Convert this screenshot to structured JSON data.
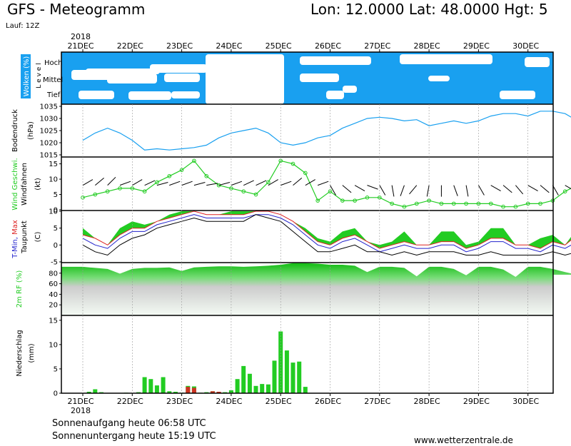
{
  "header": {
    "title": "GFS - Meteogramm",
    "location": "Lon: 12.0000  Lat: 48.0000  Hgt: 5",
    "run": "Lauf: 12Z"
  },
  "footer": {
    "sunrise": "Sonnenaufgang heute 06:58 UTC",
    "sunset": "Sonnenuntergang heute 15:19 UTC",
    "website": "www.wetterzentrale.de"
  },
  "chart_data": {
    "type": "meteogram",
    "year": "2018",
    "days": [
      "21DEC",
      "22DEC",
      "23DEC",
      "24DEC",
      "25DEC",
      "26DEC",
      "27DEC",
      "28DEC",
      "29DEC",
      "30DEC"
    ],
    "colors": {
      "cloud": "#19a0f0",
      "green": "#22cc22",
      "pressure": "#19a0f0",
      "tmax": "#dd2222",
      "tmin": "#2222cc",
      "red_precip": "#cc3322"
    },
    "panels": [
      {
        "key": "clouds",
        "ylabel": "Wolken (%)",
        "sublabel": "L e v e l",
        "levels": [
          "Hoch",
          "Mittel",
          "Tief"
        ]
      },
      {
        "key": "pressure",
        "ylabel": "Bodendruck",
        "unit": "(hPa)",
        "ylim": [
          1015,
          1035
        ],
        "ticks": [
          1015,
          1020,
          1025,
          1030,
          1035
        ],
        "x": [
          0,
          6,
          12,
          18,
          24,
          30,
          36,
          42,
          48,
          54,
          60,
          66,
          72,
          78,
          84,
          90,
          96,
          102,
          108,
          114,
          120,
          126,
          132,
          138,
          144,
          150,
          156,
          162,
          168,
          174,
          180,
          186,
          192,
          198,
          204,
          210,
          216,
          222,
          228,
          234,
          240
        ],
        "values": [
          1021,
          1024,
          1026,
          1024,
          1021,
          1017,
          1017.5,
          1017,
          1017.5,
          1018,
          1019,
          1022,
          1024,
          1025,
          1026,
          1024,
          1020,
          1019,
          1020,
          1022,
          1023,
          1026,
          1028,
          1030,
          1030.5,
          1030,
          1029,
          1029.5,
          1027,
          1028,
          1029,
          1028,
          1029,
          1031,
          1032,
          1032,
          1031,
          1033,
          1033,
          1032,
          1029
        ]
      },
      {
        "key": "wind",
        "ylabel": "Wind Geschwi.",
        "ylabel2": "Windfahnen",
        "unit": "(kt)",
        "ylim": [
          0,
          17
        ],
        "ticks": [
          0,
          5,
          10,
          15
        ],
        "x": [
          0,
          6,
          12,
          18,
          24,
          30,
          36,
          42,
          48,
          54,
          60,
          66,
          72,
          78,
          84,
          90,
          96,
          102,
          108,
          114,
          120,
          126,
          132,
          138,
          144,
          150,
          156,
          162,
          168,
          174,
          180,
          186,
          192,
          198,
          204,
          210,
          216,
          222,
          228,
          234,
          240
        ],
        "values": [
          4,
          5,
          6,
          7,
          7,
          6,
          9,
          11,
          13,
          16,
          11,
          8,
          7,
          6,
          5,
          9,
          16,
          15,
          12,
          3,
          6,
          3,
          3,
          4,
          4,
          2,
          1,
          2,
          3,
          2,
          2,
          2,
          2,
          2,
          1,
          1,
          2,
          2,
          3,
          6,
          8
        ]
      },
      {
        "key": "temperature",
        "ylabel": "T-Min, Max",
        "ylabel2": "Taupunkt",
        "unit": "(C)",
        "ylim": [
          -5,
          10
        ],
        "ticks": [
          -5,
          0,
          5,
          10
        ],
        "x": [
          0,
          6,
          12,
          18,
          24,
          30,
          36,
          42,
          48,
          54,
          60,
          66,
          72,
          78,
          84,
          90,
          96,
          102,
          108,
          114,
          120,
          126,
          132,
          138,
          144,
          150,
          156,
          162,
          168,
          174,
          180,
          186,
          192,
          198,
          204,
          210,
          216,
          222,
          228,
          234,
          240
        ],
        "tmax": [
          3,
          2,
          0,
          3,
          5,
          5,
          7,
          8,
          9,
          10,
          9,
          9,
          9,
          9,
          10,
          10,
          9,
          7,
          4,
          1,
          0,
          2,
          3,
          1,
          -1,
          0,
          1,
          0,
          0,
          1,
          1,
          -1,
          0,
          2,
          2,
          0,
          0,
          -1,
          1,
          0,
          3
        ],
        "tmin": [
          2,
          0,
          -1,
          2,
          4,
          4,
          6,
          7,
          8,
          9,
          8,
          8,
          8,
          8,
          9,
          9,
          8,
          6,
          3,
          0,
          -1,
          1,
          2,
          0,
          -2,
          -1,
          0,
          -1,
          -1,
          0,
          0,
          -2,
          -1,
          1,
          1,
          -1,
          -1,
          -2,
          0,
          -1,
          1
        ],
        "dewpoint": [
          0,
          -2,
          -3,
          0,
          2,
          3,
          5,
          6,
          7,
          8,
          7,
          7,
          7,
          7,
          9,
          8,
          7,
          4,
          1,
          -2,
          -2,
          -1,
          0,
          -2,
          -2,
          -3,
          -2,
          -3,
          -2,
          -2,
          -2,
          -3,
          -3,
          -2,
          -3,
          -3,
          -3,
          -3,
          -2,
          -3,
          -2
        ],
        "green_top": [
          5,
          2,
          0,
          5,
          7,
          6,
          7,
          9,
          10,
          10,
          9,
          9,
          10,
          10,
          10,
          10,
          9,
          7,
          5,
          2,
          1,
          4,
          5,
          1,
          0,
          1,
          4,
          0,
          0,
          4,
          4,
          0,
          1,
          5,
          5,
          0,
          0,
          2,
          3,
          0,
          5
        ]
      },
      {
        "key": "humidity",
        "ylabel": "2m RF (%)",
        "ylim": [
          0,
          100
        ],
        "ticks": [
          20,
          40,
          60,
          80
        ],
        "x": [
          0,
          6,
          12,
          18,
          24,
          30,
          36,
          42,
          48,
          54,
          60,
          66,
          72,
          78,
          84,
          90,
          96,
          102,
          108,
          114,
          120,
          126,
          132,
          138,
          144,
          150,
          156,
          162,
          168,
          174,
          180,
          186,
          192,
          198,
          204,
          210,
          216,
          222,
          228,
          234,
          240
        ],
        "values": [
          92,
          90,
          88,
          79,
          88,
          90,
          90,
          91,
          84,
          91,
          92,
          93,
          93,
          92,
          93,
          94,
          96,
          99,
          99,
          98,
          96,
          96,
          94,
          82,
          92,
          92,
          90,
          74,
          92,
          92,
          88,
          76,
          92,
          92,
          87,
          73,
          92,
          92,
          88,
          82,
          77
        ]
      },
      {
        "key": "precipitation",
        "ylabel": "Niederschlag",
        "unit": "(mm)",
        "ylim": [
          0,
          16
        ],
        "ticks": [
          0,
          5,
          10,
          15
        ],
        "x": [
          3,
          6,
          9,
          12,
          15,
          18,
          21,
          24,
          27,
          30,
          33,
          36,
          39,
          42,
          45,
          48,
          51,
          54,
          57,
          60,
          63,
          66,
          69,
          72,
          75,
          78,
          81,
          84,
          87,
          90,
          93,
          96,
          99,
          102,
          105,
          108,
          111,
          114
        ],
        "values": [
          0.3,
          0.8,
          0.2,
          0,
          0,
          0,
          0.1,
          0,
          0.2,
          3.3,
          2.9,
          1.6,
          3.3,
          0.4,
          0.3,
          0.1,
          1.5,
          1.4,
          0.1,
          0.2,
          0.4,
          0.3,
          0.2,
          0.6,
          2.9,
          5.6,
          4.0,
          1.5,
          1.9,
          1.8,
          6.7,
          12.7,
          8.8,
          6.3,
          6.5,
          1.3,
          0,
          0
        ],
        "red": [
          0,
          0,
          0,
          0,
          0,
          0,
          0,
          0,
          0,
          0,
          0,
          0,
          0,
          0,
          0,
          0,
          1.3,
          1.1,
          0,
          0,
          0.4,
          0.3,
          0,
          0,
          0,
          0,
          0,
          0,
          0,
          0,
          0,
          0,
          0,
          0,
          0,
          0,
          0,
          0
        ]
      }
    ]
  }
}
